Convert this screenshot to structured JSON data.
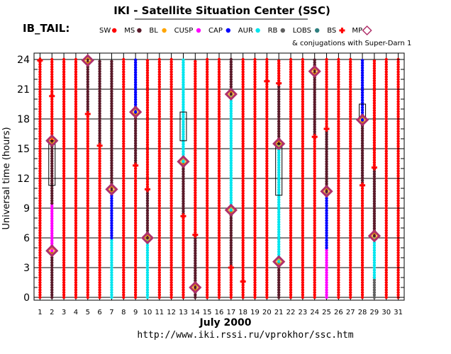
{
  "title": "IKI - Satellite Situation Center (SSC)",
  "subtitle": "IB_TAIL:",
  "conjugation_note": "& conjugations with Super-Darn 1",
  "url": "http://www.iki.rssi.ru/vprokhor/ssc.htm",
  "legend": [
    {
      "label": "SW",
      "color": "#ff0000",
      "symbol": "dot"
    },
    {
      "label": "MS",
      "color": "#5a1a2a",
      "symbol": "dot"
    },
    {
      "label": "BL",
      "color": "#ffa500",
      "symbol": "dot"
    },
    {
      "label": "CUSP",
      "color": "#ff00ff",
      "symbol": "dot"
    },
    {
      "label": "CAP",
      "color": "#0000ff",
      "symbol": "dot"
    },
    {
      "label": "AUR",
      "color": "#00e5ee",
      "symbol": "dot"
    },
    {
      "label": "RB",
      "color": "#606060",
      "symbol": "dot"
    },
    {
      "label": "LOBS",
      "color": "#2f7f7f",
      "symbol": "dot"
    },
    {
      "label": "BS",
      "color": "#ff0000",
      "symbol": "cross"
    },
    {
      "label": "MP",
      "color": "#b0306a",
      "symbol": "diamond"
    }
  ],
  "chart_data": {
    "type": "scatter",
    "xlabel": "July    2000",
    "ylabel": "Universal time (hours)",
    "x_ticks": [
      "1",
      "2",
      "3",
      "4",
      "5",
      "6",
      "7",
      "8",
      "9",
      "10",
      "11",
      "12",
      "13",
      "14",
      "15",
      "16",
      "17",
      "18",
      "19",
      "20",
      "21",
      "22",
      "23",
      "24",
      "25",
      "26",
      "27",
      "28",
      "29",
      "30",
      "31"
    ],
    "y_ticks": [
      "0",
      "3",
      "6",
      "9",
      "12",
      "15",
      "18",
      "21",
      "24"
    ],
    "xlim": [
      1,
      31
    ],
    "ylim": [
      0,
      24
    ],
    "grid": true,
    "region_colors": {
      "SW": "#ff0000",
      "MS": "#5a1a2a",
      "CUSP": "#ff00ff",
      "CAP": "#0000ff",
      "AUR": "#00e5ee",
      "RB": "#606060",
      "LOBS": "#2f7f7f",
      "BL": "#ffa500"
    },
    "days": [
      {
        "day": 1,
        "segments": [
          {
            "region": "SW",
            "from": 0,
            "to": 24
          }
        ]
      },
      {
        "day": 2,
        "segments": [
          {
            "region": "MS",
            "from": 0,
            "to": 4.7
          },
          {
            "region": "CUSP",
            "from": 4.7,
            "to": 9.5
          },
          {
            "region": "MS",
            "from": 9.5,
            "to": 16
          },
          {
            "region": "SW",
            "from": 16,
            "to": 24
          }
        ]
      },
      {
        "day": 3,
        "segments": [
          {
            "region": "SW",
            "from": 0,
            "to": 24
          }
        ]
      },
      {
        "day": 4,
        "segments": [
          {
            "region": "SW",
            "from": 0,
            "to": 24
          }
        ]
      },
      {
        "day": 5,
        "segments": [
          {
            "region": "SW",
            "from": 0,
            "to": 18.5
          },
          {
            "region": "MS",
            "from": 18.5,
            "to": 24
          }
        ]
      },
      {
        "day": 6,
        "segments": [
          {
            "region": "SW",
            "from": 0,
            "to": 15.3
          },
          {
            "region": "MS",
            "from": 15.3,
            "to": 24
          }
        ]
      },
      {
        "day": 7,
        "segments": [
          {
            "region": "AUR",
            "from": 0,
            "to": 6
          },
          {
            "region": "CAP",
            "from": 6,
            "to": 10.8
          },
          {
            "region": "MS",
            "from": 10.8,
            "to": 24
          }
        ]
      },
      {
        "day": 8,
        "segments": [
          {
            "region": "SW",
            "from": 0,
            "to": 24
          }
        ]
      },
      {
        "day": 9,
        "segments": [
          {
            "region": "SW",
            "from": 0,
            "to": 13.3
          },
          {
            "region": "MS",
            "from": 13.3,
            "to": 18.7
          },
          {
            "region": "CAP",
            "from": 18.7,
            "to": 24
          }
        ]
      },
      {
        "day": 10,
        "segments": [
          {
            "region": "AUR",
            "from": 0,
            "to": 6
          },
          {
            "region": "MS",
            "from": 6,
            "to": 10.9
          },
          {
            "region": "SW",
            "from": 10.9,
            "to": 24
          }
        ]
      },
      {
        "day": 11,
        "segments": [
          {
            "region": "SW",
            "from": 0,
            "to": 24
          }
        ]
      },
      {
        "day": 12,
        "segments": [
          {
            "region": "SW",
            "from": 0,
            "to": 24
          }
        ]
      },
      {
        "day": 13,
        "segments": [
          {
            "region": "SW",
            "from": 0,
            "to": 8.2
          },
          {
            "region": "MS",
            "from": 8.2,
            "to": 13.7
          },
          {
            "region": "AUR",
            "from": 13.7,
            "to": 24
          }
        ]
      },
      {
        "day": 14,
        "segments": [
          {
            "region": "MS",
            "from": 0,
            "to": 1.2
          },
          {
            "region": "MS",
            "from": 1.2,
            "to": 6.3
          },
          {
            "region": "SW",
            "from": 6.3,
            "to": 24
          }
        ]
      },
      {
        "day": 15,
        "segments": [
          {
            "region": "SW",
            "from": 0,
            "to": 24
          }
        ]
      },
      {
        "day": 16,
        "segments": [
          {
            "region": "SW",
            "from": 0,
            "to": 24
          }
        ]
      },
      {
        "day": 17,
        "segments": [
          {
            "region": "SW",
            "from": 0,
            "to": 3
          },
          {
            "region": "MS",
            "from": 3,
            "to": 8.8
          },
          {
            "region": "AUR",
            "from": 8.8,
            "to": 20.5
          },
          {
            "region": "MS",
            "from": 20.5,
            "to": 24
          }
        ]
      },
      {
        "day": 18,
        "segments": [
          {
            "region": "SW",
            "from": 0,
            "to": 24
          }
        ]
      },
      {
        "day": 19,
        "segments": [
          {
            "region": "SW",
            "from": 0,
            "to": 24
          }
        ]
      },
      {
        "day": 20,
        "segments": [
          {
            "region": "SW",
            "from": 0,
            "to": 24
          }
        ]
      },
      {
        "day": 21,
        "segments": [
          {
            "region": "MS",
            "from": 0,
            "to": 3.6
          },
          {
            "region": "AUR",
            "from": 3.6,
            "to": 15.5
          },
          {
            "region": "MS",
            "from": 15.5,
            "to": 21.6
          },
          {
            "region": "SW",
            "from": 21.6,
            "to": 24
          }
        ]
      },
      {
        "day": 22,
        "segments": [
          {
            "region": "SW",
            "from": 0,
            "to": 24
          }
        ]
      },
      {
        "day": 23,
        "segments": [
          {
            "region": "SW",
            "from": 0,
            "to": 24
          }
        ]
      },
      {
        "day": 24,
        "segments": [
          {
            "region": "SW",
            "from": 0,
            "to": 16.2
          },
          {
            "region": "MS",
            "from": 16.2,
            "to": 24
          }
        ]
      },
      {
        "day": 25,
        "segments": [
          {
            "region": "CUSP",
            "from": 0,
            "to": 5
          },
          {
            "region": "CAP",
            "from": 5,
            "to": 10.7
          },
          {
            "region": "MS",
            "from": 10.7,
            "to": 17
          },
          {
            "region": "SW",
            "from": 17,
            "to": 24
          }
        ]
      },
      {
        "day": 26,
        "segments": [
          {
            "region": "SW",
            "from": 0,
            "to": 24
          }
        ]
      },
      {
        "day": 27,
        "segments": [
          {
            "region": "SW",
            "from": 0,
            "to": 24
          }
        ]
      },
      {
        "day": 28,
        "segments": [
          {
            "region": "SW",
            "from": 0,
            "to": 11.3
          },
          {
            "region": "MS",
            "from": 11.3,
            "to": 17.9
          },
          {
            "region": "CAP",
            "from": 17.9,
            "to": 24
          }
        ]
      },
      {
        "day": 29,
        "segments": [
          {
            "region": "RB",
            "from": 0,
            "to": 2
          },
          {
            "region": "AUR",
            "from": 2,
            "to": 6.2
          },
          {
            "region": "MS",
            "from": 6.2,
            "to": 13.1
          },
          {
            "region": "SW",
            "from": 13.1,
            "to": 24
          }
        ]
      },
      {
        "day": 30,
        "segments": [
          {
            "region": "SW",
            "from": 0,
            "to": 24
          }
        ]
      },
      {
        "day": 31,
        "segments": [
          {
            "region": "SW",
            "from": 0,
            "to": 24
          }
        ]
      }
    ],
    "mp_crossings": [
      {
        "day": 2,
        "ut": 4.7
      },
      {
        "day": 2,
        "ut": 15.8
      },
      {
        "day": 5,
        "ut": 23.9
      },
      {
        "day": 7,
        "ut": 10.9
      },
      {
        "day": 9,
        "ut": 18.7
      },
      {
        "day": 10,
        "ut": 6
      },
      {
        "day": 13,
        "ut": 13.7
      },
      {
        "day": 14,
        "ut": 1
      },
      {
        "day": 17,
        "ut": 8.8
      },
      {
        "day": 17,
        "ut": 20.5
      },
      {
        "day": 21,
        "ut": 3.6
      },
      {
        "day": 21,
        "ut": 15.5
      },
      {
        "day": 24,
        "ut": 22.8
      },
      {
        "day": 25,
        "ut": 10.7
      },
      {
        "day": 28,
        "ut": 17.9
      },
      {
        "day": 29,
        "ut": 6.2
      }
    ],
    "bs_crossings": [
      {
        "day": 1,
        "ut": 23.9
      },
      {
        "day": 2,
        "ut": 20.3
      },
      {
        "day": 5,
        "ut": 18.5
      },
      {
        "day": 6,
        "ut": 15.3
      },
      {
        "day": 9,
        "ut": 13.3
      },
      {
        "day": 10,
        "ut": 10.9
      },
      {
        "day": 13,
        "ut": 8.2
      },
      {
        "day": 14,
        "ut": 6.3
      },
      {
        "day": 17,
        "ut": 3
      },
      {
        "day": 18,
        "ut": 1.6
      },
      {
        "day": 20,
        "ut": 21.8
      },
      {
        "day": 21,
        "ut": 21.6
      },
      {
        "day": 24,
        "ut": 16.2
      },
      {
        "day": 25,
        "ut": 17
      },
      {
        "day": 28,
        "ut": 11.3
      },
      {
        "day": 29,
        "ut": 13.1
      }
    ],
    "conjugation_boxes": [
      {
        "day": 2,
        "from": 11.3,
        "to": 15.8
      },
      {
        "day": 13,
        "from": 15.8,
        "to": 18.7
      },
      {
        "day": 21,
        "from": 10.3,
        "to": 15.5
      },
      {
        "day": 28,
        "from": 18.2,
        "to": 19.5
      }
    ]
  }
}
